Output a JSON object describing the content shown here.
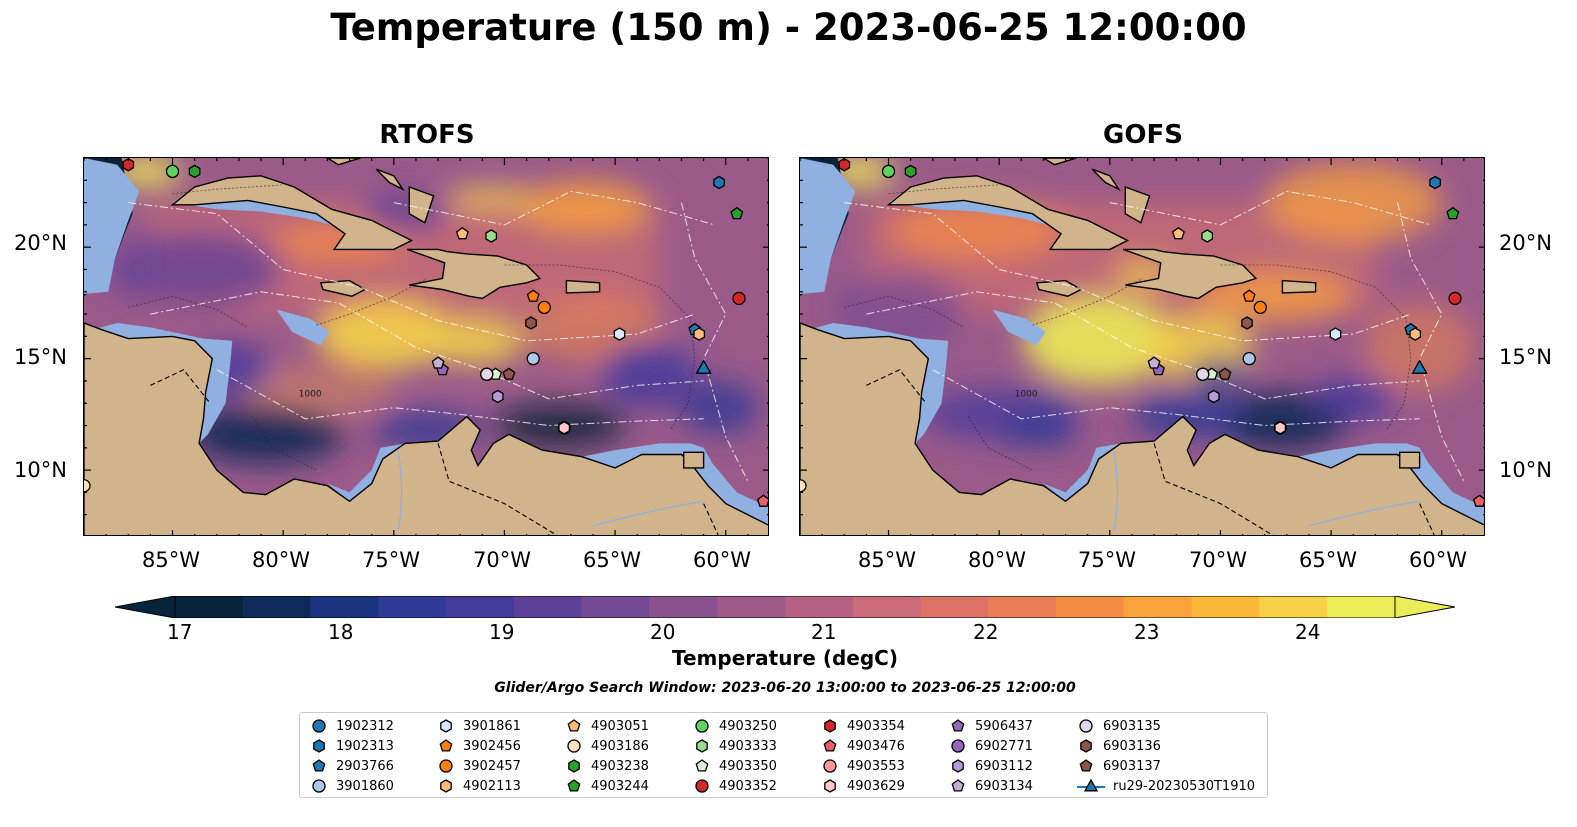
{
  "title": "Temperature (150 m) - 2023-06-25 12:00:00",
  "panels": [
    {
      "title": "RTOFS"
    },
    {
      "title": "GOFS"
    }
  ],
  "axes": {
    "lon_range": [
      -89,
      -58
    ],
    "lat_range": [
      7,
      24
    ],
    "lon_ticks": [
      "85°W",
      "80°W",
      "75°W",
      "70°W",
      "65°W",
      "60°W"
    ],
    "lat_ticks": [
      "20°N",
      "15°N",
      "10°N"
    ]
  },
  "colorbar": {
    "label": "Temperature (degC)",
    "min": 16.25,
    "max": 24.5,
    "ticks": [
      "17",
      "18",
      "19",
      "20",
      "21",
      "22",
      "23",
      "24"
    ],
    "colors": [
      "#08243a",
      "#0d2a58",
      "#1b3381",
      "#2e3a96",
      "#45399c",
      "#5d4098",
      "#744a94",
      "#895190",
      "#9f5a8a",
      "#b66182",
      "#cb6a78",
      "#de7267",
      "#ea7d56",
      "#f58c45",
      "#faa23c",
      "#fbb83b",
      "#f7d148",
      "#eceb58"
    ],
    "extend": "both"
  },
  "search_window": "Glider/Argo Search Window: 2023-06-20 13:00:00 to 2023-06-25 12:00:00",
  "colors": {
    "land": "#d2b48c",
    "shelf": "#8fb0e0",
    "coast": "#000000"
  },
  "legend": [
    {
      "label": "1902312",
      "marker": "circle",
      "color": "#1f77b4"
    },
    {
      "label": "1902313",
      "marker": "hexagon",
      "color": "#1f77b4"
    },
    {
      "label": "2903766",
      "marker": "pentagon",
      "color": "#1f77b4"
    },
    {
      "label": "3901860",
      "marker": "circle",
      "color": "#aec7e8"
    },
    {
      "label": "3901861",
      "marker": "hexagon",
      "color": "#d6e8fa"
    },
    {
      "label": "3902456",
      "marker": "pentagon",
      "color": "#ff7f0e"
    },
    {
      "label": "3902457",
      "marker": "circle",
      "color": "#ff7f0e"
    },
    {
      "label": "4902113",
      "marker": "hexagon",
      "color": "#ffbb78"
    },
    {
      "label": "4903051",
      "marker": "pentagon",
      "color": "#ffbb78"
    },
    {
      "label": "4903186",
      "marker": "circle",
      "color": "#ffe0c2"
    },
    {
      "label": "4903238",
      "marker": "hexagon",
      "color": "#2ca02c"
    },
    {
      "label": "4903244",
      "marker": "pentagon",
      "color": "#2ca02c"
    },
    {
      "label": "4903250",
      "marker": "circle",
      "color": "#5fd35f"
    },
    {
      "label": "4903333",
      "marker": "hexagon",
      "color": "#98df8a"
    },
    {
      "label": "4903350",
      "marker": "pentagon",
      "color": "#d8f5d0"
    },
    {
      "label": "4903352",
      "marker": "circle",
      "color": "#d62728"
    },
    {
      "label": "4903354",
      "marker": "hexagon",
      "color": "#d62728"
    },
    {
      "label": "4903476",
      "marker": "pentagon",
      "color": "#e8606a"
    },
    {
      "label": "4903553",
      "marker": "circle",
      "color": "#ff9896"
    },
    {
      "label": "4903629",
      "marker": "hexagon",
      "color": "#ffc8c6"
    },
    {
      "label": "5906437",
      "marker": "pentagon",
      "color": "#9467bd"
    },
    {
      "label": "6902771",
      "marker": "circle",
      "color": "#9467bd"
    },
    {
      "label": "6903112",
      "marker": "hexagon",
      "color": "#b89ad8"
    },
    {
      "label": "6903134",
      "marker": "pentagon",
      "color": "#c5b0d5"
    },
    {
      "label": "6903135",
      "marker": "circle",
      "color": "#e6d5ef"
    },
    {
      "label": "6903136",
      "marker": "hexagon",
      "color": "#8c564b"
    },
    {
      "label": "6903137",
      "marker": "pentagon",
      "color": "#8c564b"
    },
    {
      "label": "ru29-20230530T1910",
      "marker": "triangle",
      "color": "#1f77b4"
    }
  ],
  "platforms": [
    {
      "id": "1902312",
      "lon": -89.2,
      "lat": 9.3
    },
    {
      "id": "1902313",
      "lon": -60.3,
      "lat": 22.9
    },
    {
      "id": "2903766",
      "lon": -61.4,
      "lat": 16.3
    },
    {
      "id": "3901860",
      "lon": -68.7,
      "lat": 15.0
    },
    {
      "id": "3901861",
      "lon": -64.8,
      "lat": 16.1
    },
    {
      "id": "3902456",
      "lon": -68.7,
      "lat": 17.8
    },
    {
      "id": "3902457",
      "lon": -68.2,
      "lat": 17.3
    },
    {
      "id": "4902113",
      "lon": -61.2,
      "lat": 16.1
    },
    {
      "id": "4903051",
      "lon": -71.9,
      "lat": 20.6
    },
    {
      "id": "4903186",
      "lon": -89.0,
      "lat": 9.3
    },
    {
      "id": "4903238",
      "lon": -84.0,
      "lat": 23.4
    },
    {
      "id": "4903244",
      "lon": -59.5,
      "lat": 21.5
    },
    {
      "id": "4903250",
      "lon": -85.0,
      "lat": 23.4
    },
    {
      "id": "4903333",
      "lon": -70.6,
      "lat": 20.5
    },
    {
      "id": "4903350",
      "lon": -70.4,
      "lat": 14.3
    },
    {
      "id": "4903352",
      "lon": -59.4,
      "lat": 17.7
    },
    {
      "id": "4903354",
      "lon": -87.0,
      "lat": 23.7
    },
    {
      "id": "4903476",
      "lon": -58.3,
      "lat": 8.6
    },
    {
      "id": "4903553",
      "lon": -67.3,
      "lat": 11.9
    },
    {
      "id": "4903629",
      "lon": -67.3,
      "lat": 11.9
    },
    {
      "id": "5906437",
      "lon": -72.8,
      "lat": 14.5
    },
    {
      "id": "6902771",
      "lon": -70.8,
      "lat": 14.3
    },
    {
      "id": "6903112",
      "lon": -70.3,
      "lat": 13.3
    },
    {
      "id": "6903134",
      "lon": -73.0,
      "lat": 14.8
    },
    {
      "id": "6903135",
      "lon": -70.8,
      "lat": 14.3
    },
    {
      "id": "6903136",
      "lon": -68.8,
      "lat": 16.6
    },
    {
      "id": "6903137",
      "lon": -69.8,
      "lat": 14.3
    },
    {
      "id": "ru29-20230530T1910",
      "lon": -61.0,
      "lat": 14.6
    }
  ],
  "contour_labels": [
    "1000"
  ]
}
